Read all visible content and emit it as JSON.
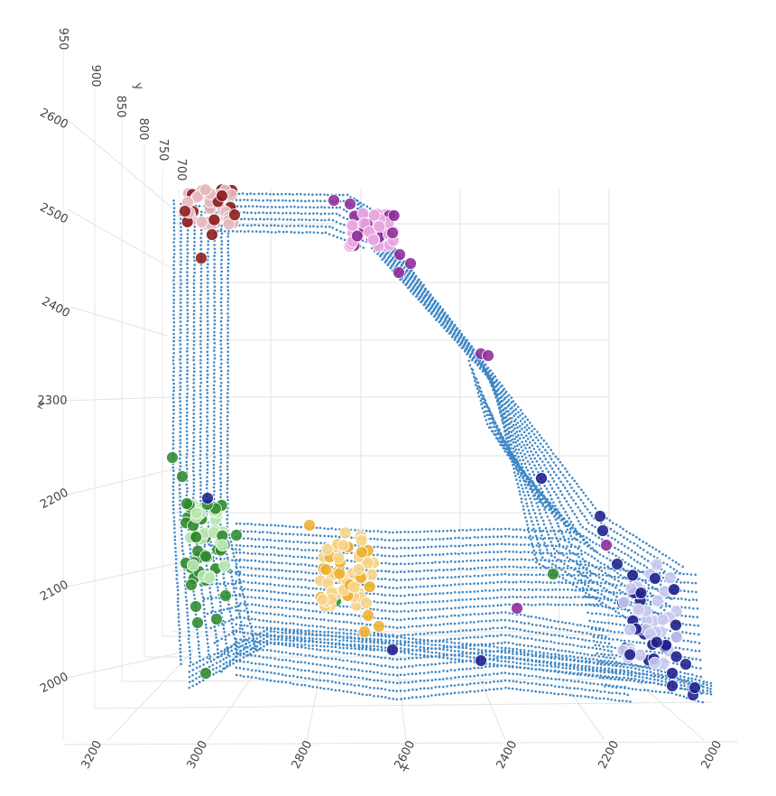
{
  "chart_data": {
    "type": "scatter3d",
    "title": "",
    "axes": {
      "x": {
        "label": "x",
        "ticks": [
          "3200",
          "3000",
          "2800",
          "2600",
          "2400",
          "2200",
          "2000"
        ]
      },
      "y": {
        "label": "y",
        "ticks": [
          "700",
          "750",
          "800",
          "850",
          "900",
          "950"
        ]
      },
      "z": {
        "label": "z",
        "ticks": [
          "2000",
          "2100",
          "2200",
          "2300",
          "2400",
          "2500",
          "2600"
        ]
      }
    },
    "point_cloud": {
      "description": "dense door-frame point cloud",
      "color": "#3f88c5"
    },
    "clusters": [
      {
        "color": "#8b1a1a",
        "highlight": "#e6b8c0",
        "location": "upper-left corner"
      },
      {
        "color": "#8e2a9a",
        "highlight": "#e9a6df",
        "location": "upper frame slope"
      },
      {
        "color": "#2e8b2e",
        "highlight": "#b7e6b0",
        "location": "left pillar, lower"
      },
      {
        "color": "#f0b030",
        "highlight": "#f7d48a",
        "location": "lower panel, center"
      },
      {
        "color": "#1f1f8c",
        "highlight": "#c8c8f0",
        "location": "lower-right corner"
      }
    ]
  }
}
